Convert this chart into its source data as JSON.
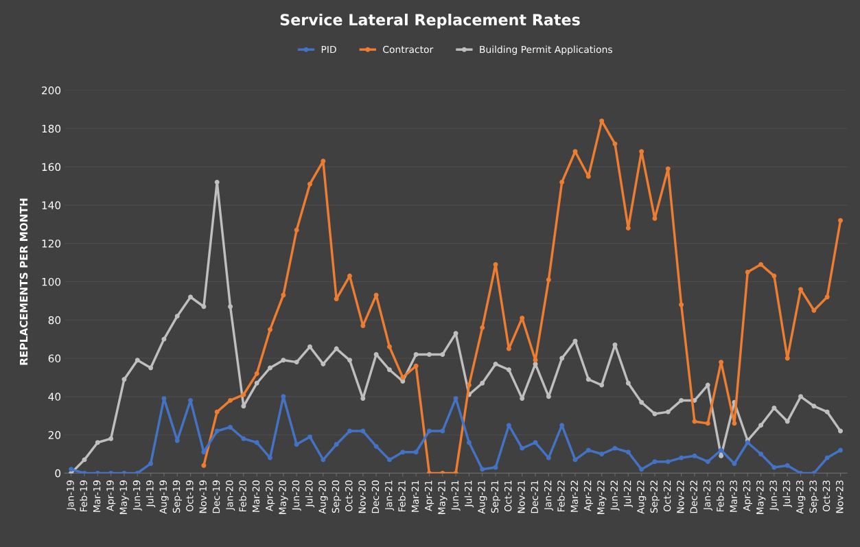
{
  "chart_data": {
    "type": "line",
    "title": "Service Lateral Replacement Rates",
    "ylabel": "REPLACEMENTS PER MONTH",
    "categories": [
      "Jan-19",
      "Feb-19",
      "Mar-19",
      "Apr-19",
      "May-19",
      "Jun-19",
      "Jul-19",
      "Aug-19",
      "Sep-19",
      "Oct-19",
      "Nov-19",
      "Dec-19",
      "Jan-20",
      "Feb-20",
      "Mar-20",
      "Apr-20",
      "May-20",
      "Jun-20",
      "Jul-20",
      "Aug-20",
      "Sep-20",
      "Oct-20",
      "Nov-20",
      "Dec-20",
      "Jan-21",
      "Feb-21",
      "Mar-21",
      "Apr-21",
      "May-21",
      "Jun-21",
      "Jul-21",
      "Aug-21",
      "Sep-21",
      "Oct-21",
      "Nov-21",
      "Dec-21",
      "Jan-22",
      "Feb-22",
      "Mar-22",
      "Apr-22",
      "May-22",
      "Jun-22",
      "Jul-22",
      "Aug-22",
      "Sep-22",
      "Oct-22",
      "Nov-22",
      "Dec-22",
      "Jan-23",
      "Feb-23",
      "Mar-23",
      "Apr-23",
      "May-23",
      "Jun-23",
      "Jul-23",
      "Aug-23",
      "Sep-23",
      "Oct-23",
      "Nov-23"
    ],
    "series": [
      {
        "name": "PID",
        "color": "#4472c4",
        "values": [
          2,
          0,
          0,
          0,
          0,
          0,
          5,
          39,
          17,
          38,
          11,
          22,
          24,
          18,
          16,
          8,
          40,
          15,
          19,
          7,
          15,
          22,
          22,
          14,
          7,
          11,
          11,
          22,
          22,
          39,
          16,
          2,
          3,
          25,
          13,
          16,
          8,
          25,
          7,
          12,
          10,
          13,
          11,
          2,
          6,
          6,
          8,
          9,
          6,
          12,
          5,
          16,
          10,
          3,
          4,
          0,
          0,
          8,
          12
        ]
      },
      {
        "name": "Contractor",
        "color": "#ed7d31",
        "values": [
          null,
          null,
          null,
          null,
          null,
          null,
          null,
          null,
          null,
          null,
          4,
          32,
          38,
          41,
          52,
          75,
          93,
          127,
          151,
          163,
          91,
          103,
          77,
          93,
          66,
          50,
          56,
          0,
          0,
          0,
          46,
          76,
          109,
          65,
          81,
          59,
          101,
          152,
          168,
          155,
          184,
          172,
          128,
          168,
          133,
          159,
          88,
          27,
          26,
          58,
          26,
          105,
          109,
          103,
          60,
          96,
          85,
          92,
          132
        ]
      },
      {
        "name": "Building Permit Applications",
        "color": "#bfbfbf",
        "values": [
          0,
          7,
          16,
          18,
          49,
          59,
          55,
          70,
          82,
          92,
          87,
          152,
          87,
          35,
          47,
          55,
          59,
          58,
          66,
          57,
          65,
          59,
          39,
          62,
          54,
          48,
          62,
          62,
          62,
          73,
          41,
          47,
          57,
          54,
          39,
          57,
          40,
          60,
          69,
          49,
          46,
          67,
          47,
          37,
          31,
          32,
          38,
          38,
          46,
          9,
          37,
          17,
          25,
          34,
          27,
          40,
          35,
          32,
          22
        ]
      }
    ],
    "ylim": [
      0,
      200
    ],
    "yticks": [
      0,
      20,
      40,
      60,
      80,
      100,
      120,
      140,
      160,
      180,
      200
    ],
    "grid": "y",
    "legend": "top",
    "marker": "circle",
    "line_style": "solid"
  }
}
